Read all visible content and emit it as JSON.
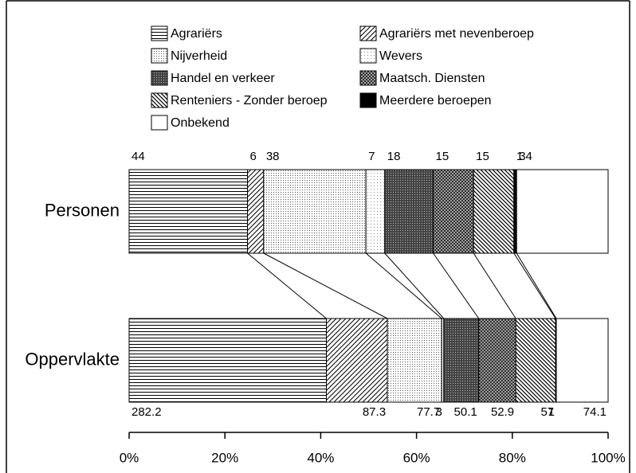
{
  "chart_data": {
    "type": "bar",
    "orientation": "horizontal",
    "stacked": "percent",
    "categories": [
      "Personen",
      "Oppervlakte"
    ],
    "series": [
      {
        "name": "Agrariërs",
        "pattern": "horizontal",
        "values": [
          44,
          282.2
        ]
      },
      {
        "name": "Agrariërs met nevenberoep",
        "pattern": "diagonal",
        "values": [
          6,
          87.3
        ]
      },
      {
        "name": "Nijverheid",
        "pattern": "dots",
        "values": [
          38,
          77.7
        ]
      },
      {
        "name": "Wevers",
        "pattern": "sparse-dots",
        "values": [
          7,
          3
        ]
      },
      {
        "name": "Handel en verkeer",
        "pattern": "dark",
        "values": [
          18,
          50.1
        ]
      },
      {
        "name": "Maatsch. Diensten",
        "pattern": "crosshatch",
        "values": [
          15,
          52.9
        ]
      },
      {
        "name": "Renteniers - Zonder beroep",
        "pattern": "back-diagonal",
        "values": [
          15,
          57
        ]
      },
      {
        "name": "Meerdere beroepen",
        "pattern": "solid",
        "values": [
          1,
          1
        ]
      },
      {
        "name": "Onbekend",
        "pattern": "none",
        "values": [
          34,
          74.1
        ]
      }
    ],
    "xlim": [
      0,
      100
    ],
    "xticks": [
      {
        "value": 0,
        "label": "0%"
      },
      {
        "value": 20,
        "label": "20%"
      },
      {
        "value": 40,
        "label": "40%"
      },
      {
        "value": 60,
        "label": "60%"
      },
      {
        "value": 80,
        "label": "80%"
      },
      {
        "value": 100,
        "label": "100%"
      }
    ],
    "legend": "top"
  }
}
